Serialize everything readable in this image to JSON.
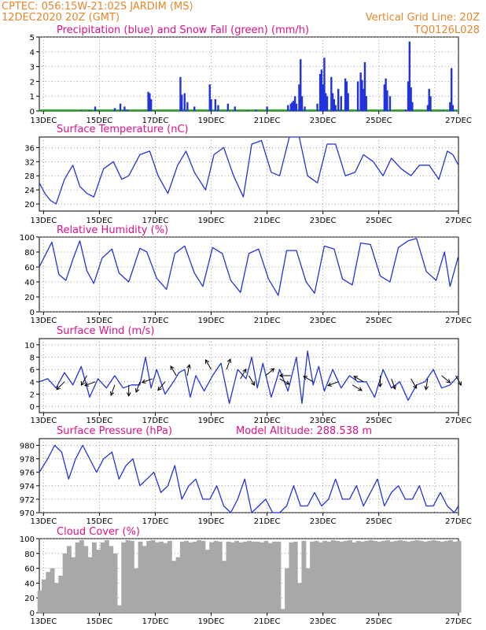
{
  "header": {
    "line1": "CPTEC:  056:15W-21:02S  JARDIM (MS)",
    "line2": "12DEC2020 20Z (GMT)",
    "grid_note": "Vertical Grid Line: 20Z",
    "code": "TQ0126L028"
  },
  "colors": {
    "header": "#e8862a",
    "title": "#e0108a",
    "line": "#2233dd",
    "snow": "#22aa22",
    "cloud": "#a8a8a8",
    "grid": "#888888"
  },
  "x_ticks": [
    "13DEC",
    "15DEC",
    "17DEC",
    "19DEC",
    "21DEC",
    "23DEC",
    "25DEC",
    "27DEC"
  ],
  "chart_data": [
    {
      "type": "bar",
      "title": "Precipitation (blue) and Snow Fall (green) (mm/h)",
      "x_range": [
        "12DEC2020 20Z",
        "27DEC2020 20Z"
      ],
      "ylim": [
        0,
        5
      ],
      "yticks": [
        0,
        1,
        2,
        3,
        4,
        5
      ],
      "grid": true,
      "series": [
        {
          "name": "Precipitation",
          "values": [
            [
              1.5,
              0.05
            ],
            [
              1.8,
              0.05
            ],
            [
              2.0,
              0.3
            ],
            [
              2.7,
              0.2
            ],
            [
              2.9,
              0.5
            ],
            [
              3.05,
              0.3
            ],
            [
              3.15,
              0.1
            ],
            [
              3.9,
              1.3
            ],
            [
              3.95,
              1.2
            ],
            [
              4.0,
              0.8
            ],
            [
              5.05,
              2.3
            ],
            [
              5.1,
              1.1
            ],
            [
              5.2,
              1.2
            ],
            [
              5.3,
              0.6
            ],
            [
              5.55,
              0.3
            ],
            [
              6.1,
              1.8
            ],
            [
              6.15,
              0.8
            ],
            [
              6.3,
              0.8
            ],
            [
              6.4,
              0.4
            ],
            [
              6.75,
              0.5
            ],
            [
              7.0,
              0.3
            ],
            [
              7.45,
              0.05
            ],
            [
              7.75,
              0.1
            ],
            [
              8.15,
              0.3
            ],
            [
              8.9,
              0.4
            ],
            [
              9.0,
              0.5
            ],
            [
              9.05,
              0.6
            ],
            [
              9.1,
              0.7
            ],
            [
              9.15,
              1.0
            ],
            [
              9.2,
              0.5
            ],
            [
              9.3,
              1.8
            ],
            [
              9.35,
              3.5
            ],
            [
              9.4,
              1.0
            ],
            [
              9.5,
              0.3
            ],
            [
              9.95,
              0.5
            ],
            [
              10.05,
              2.5
            ],
            [
              10.1,
              2.8
            ],
            [
              10.15,
              1.8
            ],
            [
              10.2,
              3.6
            ],
            [
              10.25,
              1.2
            ],
            [
              10.3,
              1.0
            ],
            [
              10.45,
              2.3
            ],
            [
              10.5,
              1.2
            ],
            [
              10.55,
              0.8
            ],
            [
              10.6,
              0.4
            ],
            [
              10.7,
              1.5
            ],
            [
              10.8,
              1.0
            ],
            [
              10.95,
              2.2
            ],
            [
              11.0,
              2.0
            ],
            [
              11.05,
              1.2
            ],
            [
              11.4,
              2.0
            ],
            [
              11.5,
              2.6
            ],
            [
              11.55,
              2.1
            ],
            [
              11.6,
              1.5
            ],
            [
              11.65,
              3.3
            ],
            [
              11.7,
              1.0
            ],
            [
              12.35,
              1.8
            ],
            [
              12.4,
              2.2
            ],
            [
              12.45,
              1.4
            ],
            [
              12.55,
              1.0
            ],
            [
              13.1,
              0.1
            ],
            [
              13.2,
              2.0
            ],
            [
              13.25,
              4.7
            ],
            [
              13.3,
              1.6
            ],
            [
              13.35,
              0.6
            ],
            [
              13.9,
              0.4
            ],
            [
              13.95,
              1.5
            ],
            [
              14.0,
              1.0
            ],
            [
              14.45,
              0.05
            ],
            [
              14.7,
              0.6
            ],
            [
              14.75,
              2.9
            ],
            [
              14.8,
              0.4
            ]
          ]
        },
        {
          "name": "Snow Fall",
          "values": []
        }
      ]
    },
    {
      "type": "line",
      "title": "Surface Temperature (nC)",
      "ylim": [
        18,
        39
      ],
      "yticks": [
        20,
        24,
        28,
        32,
        36
      ],
      "grid": true,
      "x": [
        0,
        0.2,
        0.4,
        0.6,
        0.9,
        1.2,
        1.45,
        1.7,
        1.95,
        2.3,
        2.65,
        2.95,
        3.2,
        3.6,
        3.95,
        4.25,
        4.6,
        4.95,
        5.25,
        5.55,
        5.95,
        6.25,
        6.6,
        6.95,
        7.3,
        7.6,
        7.95,
        8.3,
        8.6,
        8.95,
        9.3,
        9.6,
        9.95,
        10.3,
        10.6,
        10.95,
        11.3,
        11.6,
        11.95,
        12.3,
        12.6,
        12.95,
        13.3,
        13.6,
        13.95,
        14.3,
        14.6,
        14.8,
        15.0
      ],
      "values": [
        26,
        23,
        21,
        20,
        27,
        31,
        25,
        23,
        22,
        30,
        32,
        27,
        28,
        34,
        35,
        28,
        23,
        31,
        35,
        29,
        24,
        34,
        36,
        28,
        22,
        37,
        38,
        29,
        28,
        39,
        39,
        28,
        26,
        37,
        37,
        28,
        29,
        34,
        32,
        28,
        33,
        30,
        28,
        31,
        31,
        27,
        35,
        34,
        31
      ]
    },
    {
      "type": "line",
      "title": "Relative Humidity (%)",
      "ylim": [
        0,
        100
      ],
      "yticks": [
        0,
        20,
        40,
        60,
        80,
        100
      ],
      "grid": true,
      "x": [
        0,
        0.2,
        0.45,
        0.7,
        0.95,
        1.2,
        1.45,
        1.7,
        1.95,
        2.25,
        2.6,
        2.85,
        3.2,
        3.6,
        3.85,
        4.2,
        4.55,
        4.85,
        5.2,
        5.55,
        5.85,
        6.2,
        6.55,
        6.85,
        7.2,
        7.5,
        7.85,
        8.2,
        8.55,
        8.85,
        9.2,
        9.55,
        9.85,
        10.2,
        10.55,
        10.85,
        11.2,
        11.5,
        11.85,
        12.2,
        12.55,
        12.85,
        13.2,
        13.5,
        13.85,
        14.2,
        14.5,
        14.7,
        15.0
      ],
      "values": [
        60,
        75,
        93,
        50,
        42,
        70,
        95,
        55,
        38,
        72,
        84,
        52,
        40,
        85,
        80,
        45,
        30,
        78,
        88,
        52,
        34,
        86,
        78,
        42,
        26,
        78,
        84,
        44,
        22,
        82,
        82,
        40,
        25,
        88,
        84,
        44,
        36,
        92,
        90,
        48,
        40,
        86,
        95,
        98,
        54,
        42,
        80,
        34,
        75
      ]
    },
    {
      "type": "line",
      "title": "Surface Wind (m/s)",
      "ylim": [
        -1,
        11
      ],
      "yticks": [
        0,
        2,
        4,
        6,
        8,
        10
      ],
      "grid": true,
      "x": [
        0,
        0.3,
        0.6,
        0.9,
        1.2,
        1.5,
        1.8,
        2.1,
        2.4,
        2.7,
        3.0,
        3.3,
        3.6,
        3.8,
        4.0,
        4.2,
        4.5,
        4.8,
        5.0,
        5.2,
        5.4,
        5.6,
        5.9,
        6.2,
        6.5,
        6.8,
        7.1,
        7.4,
        7.6,
        7.8,
        8.0,
        8.3,
        8.6,
        8.9,
        9.2,
        9.4,
        9.6,
        9.8,
        10.0,
        10.2,
        10.5,
        10.8,
        11.1,
        11.4,
        11.7,
        12.0,
        12.3,
        12.6,
        12.9,
        13.2,
        13.5,
        13.8,
        14.1,
        14.4,
        14.7,
        15.0
      ],
      "values": [
        4,
        4.5,
        3,
        5.5,
        3.5,
        6.5,
        1.5,
        4.5,
        3,
        5,
        3,
        3.5,
        3.5,
        8,
        3,
        6,
        2,
        4,
        5.5,
        6,
        1.5,
        5,
        2.5,
        5,
        7,
        0.5,
        6,
        4.5,
        8,
        3,
        7,
        1.5,
        6,
        2.5,
        8,
        0.5,
        9,
        3.5,
        6.5,
        2.5,
        6,
        3,
        5,
        4,
        4,
        1.5,
        6,
        3,
        4,
        1,
        3.5,
        4,
        6,
        3,
        3.5,
        5
      ],
      "arrows": [
        {
          "x": 0.9,
          "y": 4,
          "dir": 225
        },
        {
          "x": 1.7,
          "y": 5,
          "dir": 240
        },
        {
          "x": 2.0,
          "y": 4,
          "dir": 200
        },
        {
          "x": 2.7,
          "y": 3.5,
          "dir": 250
        },
        {
          "x": 3.2,
          "y": 3.5,
          "dir": 270
        },
        {
          "x": 3.6,
          "y": 4,
          "dir": 250
        },
        {
          "x": 4.05,
          "y": 4.5,
          "dir": 200
        },
        {
          "x": 4.5,
          "y": 4,
          "dir": 230
        },
        {
          "x": 4.9,
          "y": 5,
          "dir": 120
        },
        {
          "x": 5.3,
          "y": 5,
          "dir": 80
        },
        {
          "x": 6.15,
          "y": 6,
          "dir": 120
        },
        {
          "x": 6.7,
          "y": 6,
          "dir": 70
        },
        {
          "x": 7.2,
          "y": 4.5,
          "dir": 60
        },
        {
          "x": 7.5,
          "y": 5,
          "dir": 300
        },
        {
          "x": 8.1,
          "y": 5,
          "dir": 40
        },
        {
          "x": 8.6,
          "y": 4.5,
          "dir": 330
        },
        {
          "x": 9.0,
          "y": 5,
          "dir": 180
        },
        {
          "x": 9.8,
          "y": 4,
          "dir": 150
        },
        {
          "x": 10.7,
          "y": 4,
          "dir": 200
        },
        {
          "x": 11.2,
          "y": 3.5,
          "dir": 330
        },
        {
          "x": 11.6,
          "y": 4,
          "dir": 150
        },
        {
          "x": 12.2,
          "y": 5,
          "dir": 270
        },
        {
          "x": 12.6,
          "y": 4.5,
          "dir": 290
        },
        {
          "x": 13.3,
          "y": 4.5,
          "dir": 300
        },
        {
          "x": 13.9,
          "y": 4.5,
          "dir": 260
        },
        {
          "x": 14.4,
          "y": 5,
          "dir": 320
        },
        {
          "x": 14.9,
          "y": 5,
          "dir": 300
        }
      ]
    },
    {
      "type": "line",
      "title": "Surface Pressure (hPa)",
      "annotation": "Model Altitude: 288.538 m",
      "ylim": [
        970,
        981
      ],
      "yticks": [
        970,
        972,
        974,
        976,
        978,
        980
      ],
      "grid": true,
      "x": [
        0,
        0.3,
        0.55,
        0.8,
        1.05,
        1.3,
        1.55,
        1.8,
        2.05,
        2.3,
        2.6,
        2.85,
        3.1,
        3.35,
        3.6,
        3.85,
        4.1,
        4.35,
        4.6,
        4.85,
        5.1,
        5.35,
        5.6,
        5.85,
        6.1,
        6.35,
        6.6,
        6.85,
        7.1,
        7.35,
        7.6,
        7.85,
        8.1,
        8.35,
        8.6,
        8.85,
        9.1,
        9.35,
        9.6,
        9.85,
        10.1,
        10.35,
        10.6,
        10.85,
        11.1,
        11.35,
        11.6,
        11.85,
        12.1,
        12.35,
        12.6,
        12.85,
        13.1,
        13.35,
        13.6,
        13.85,
        14.1,
        14.35,
        14.6,
        14.85,
        15.0
      ],
      "values": [
        976,
        978,
        980,
        979,
        975,
        978,
        980,
        978,
        976,
        978,
        979,
        975,
        977,
        978,
        974,
        975,
        976,
        973,
        974,
        977,
        972,
        974,
        975,
        972,
        972,
        974,
        971,
        970,
        972,
        975,
        970,
        971,
        972,
        970,
        969,
        971,
        974,
        971,
        971,
        973,
        971,
        972,
        975,
        972,
        972,
        974,
        971,
        973,
        975,
        971,
        973,
        974,
        972,
        972,
        974,
        971,
        971,
        973,
        971,
        970,
        971
      ]
    },
    {
      "type": "area",
      "title": "Cloud Cover (%)",
      "ylim": [
        0,
        100
      ],
      "yticks": [
        0,
        20,
        40,
        60,
        80,
        100
      ],
      "grid": true,
      "x": [
        0,
        0.15,
        0.3,
        0.45,
        0.6,
        0.75,
        0.9,
        1.05,
        1.2,
        1.35,
        1.5,
        1.65,
        1.8,
        1.95,
        2.1,
        2.25,
        2.4,
        2.55,
        2.7,
        2.85,
        3.0,
        3.15,
        3.3,
        3.45,
        3.6,
        3.75,
        3.9,
        4.05,
        4.2,
        4.35,
        4.5,
        4.65,
        4.8,
        4.95,
        5.1,
        5.25,
        5.4,
        5.55,
        5.7,
        5.85,
        6.0,
        6.15,
        6.3,
        6.45,
        6.6,
        6.75,
        6.9,
        7.05,
        7.2,
        7.35,
        7.5,
        7.65,
        7.8,
        7.95,
        8.1,
        8.25,
        8.4,
        8.55,
        8.7,
        8.85,
        9.0,
        9.15,
        9.3,
        9.45,
        9.6,
        9.75,
        9.9,
        10.05,
        10.2,
        10.35,
        10.5,
        10.65,
        10.8,
        10.95,
        11.1,
        11.25,
        11.4,
        11.55,
        11.7,
        11.85,
        12.0,
        12.15,
        12.3,
        12.45,
        12.6,
        12.75,
        12.9,
        13.05,
        13.2,
        13.35,
        13.5,
        13.65,
        13.8,
        13.95,
        14.1,
        14.25,
        14.4,
        14.55,
        14.7,
        14.85,
        15.0
      ],
      "values": [
        30,
        45,
        55,
        60,
        40,
        50,
        80,
        90,
        75,
        95,
        98,
        90,
        75,
        95,
        85,
        95,
        98,
        90,
        80,
        10,
        95,
        98,
        97,
        60,
        96,
        90,
        97,
        98,
        95,
        96,
        94,
        97,
        70,
        75,
        96,
        97,
        95,
        96,
        98,
        97,
        85,
        95,
        97,
        96,
        70,
        96,
        95,
        97,
        95,
        96,
        97,
        96,
        96,
        95,
        97,
        94,
        96,
        96,
        5,
        60,
        95,
        96,
        40,
        97,
        60,
        96,
        97,
        95,
        97,
        96,
        98,
        97,
        96,
        97,
        98,
        95,
        97,
        96,
        97,
        98,
        97,
        96,
        97,
        98,
        96,
        97,
        98,
        97,
        96,
        97,
        98,
        97,
        96,
        97,
        98,
        97,
        96,
        97,
        98,
        96,
        97
      ]
    }
  ]
}
